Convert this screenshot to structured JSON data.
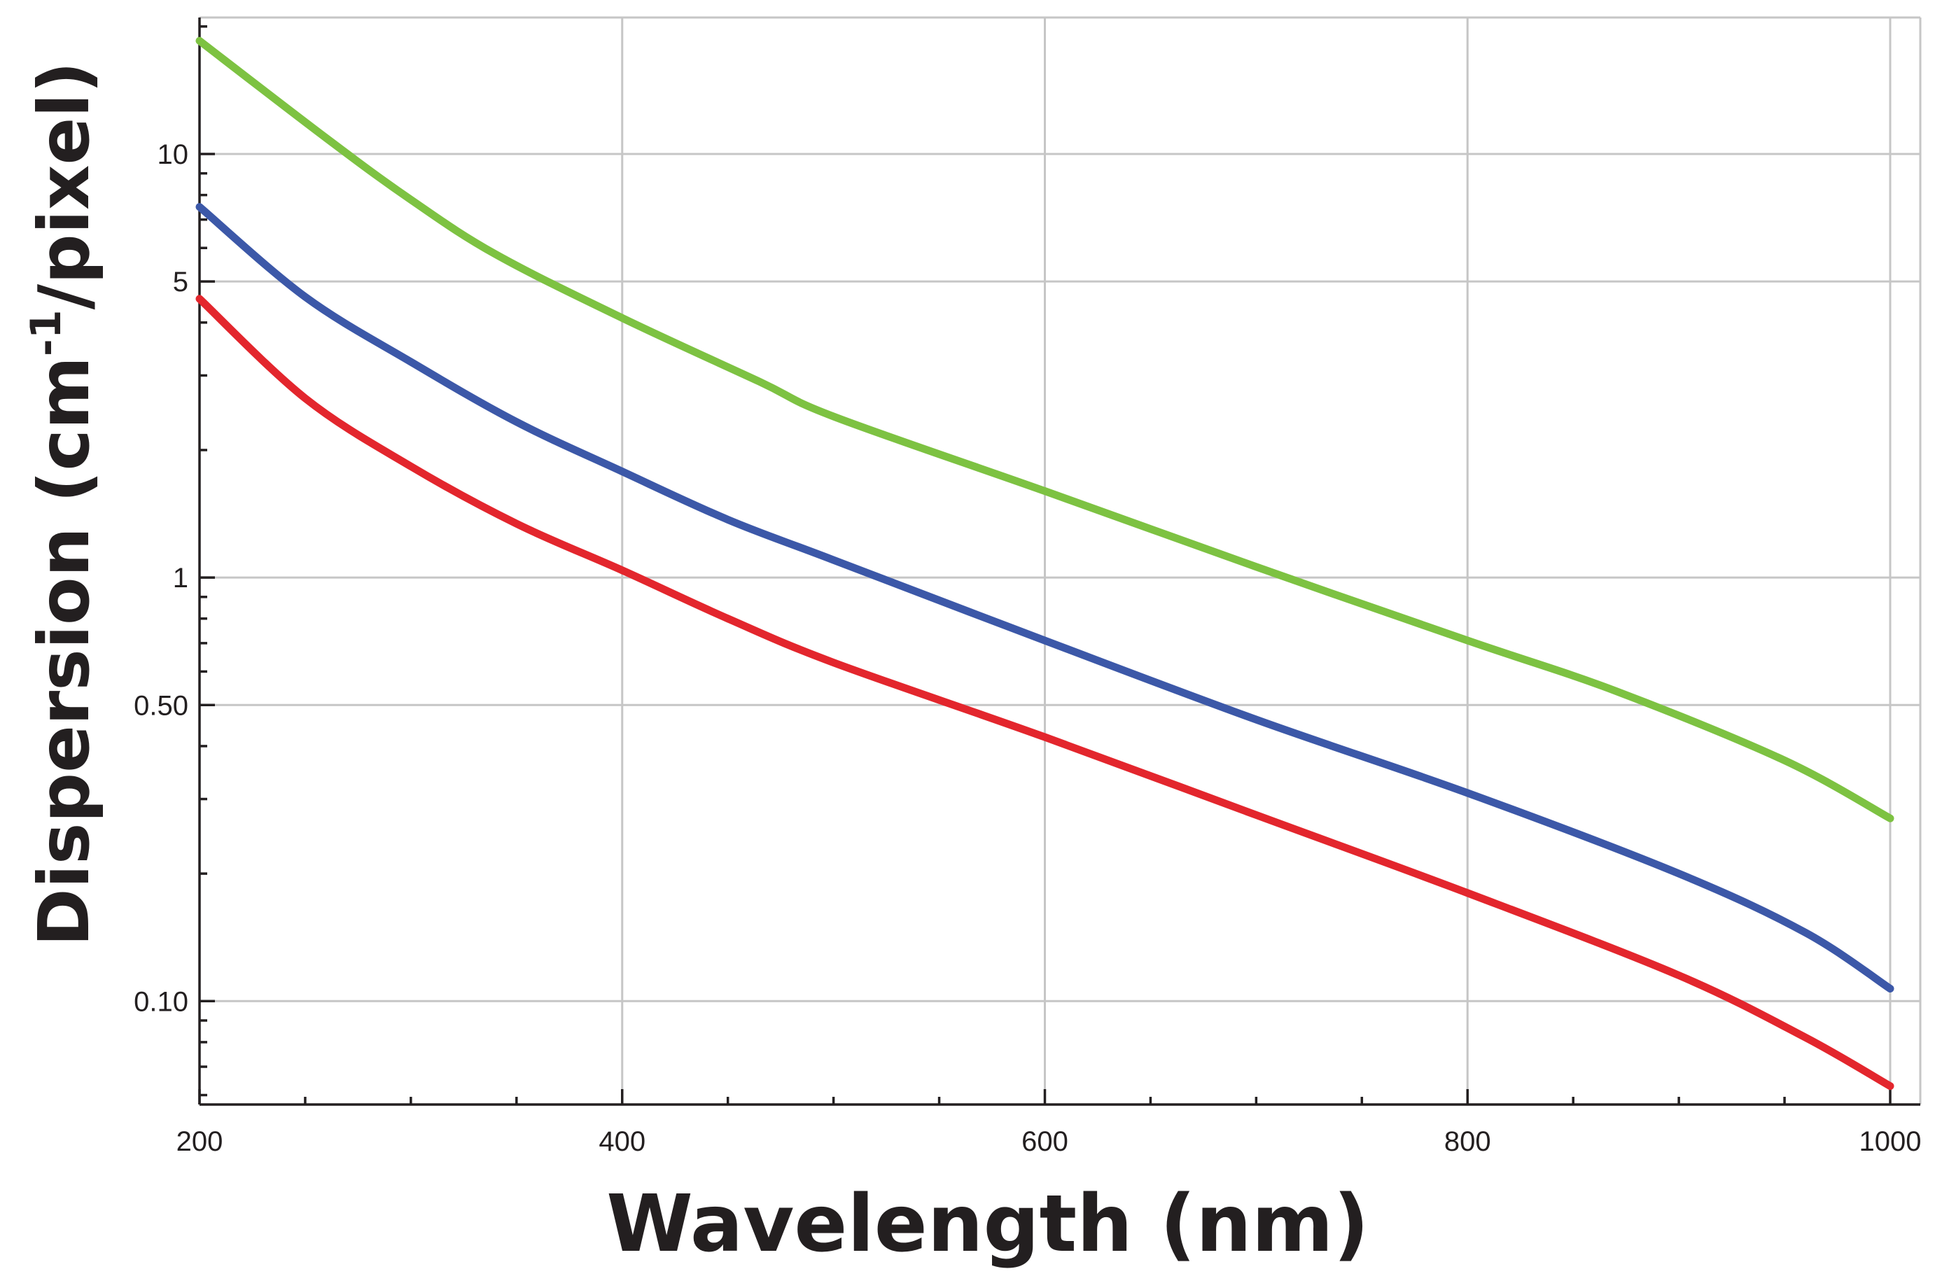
{
  "chart_data": {
    "type": "line",
    "title": "",
    "xlabel": "Wavelength (nm)",
    "ylabel": {
      "main": "Dispersion (cm",
      "superscript": "-1",
      "suffix": "/pixel)"
    },
    "x_scale": "linear",
    "y_scale": "log",
    "xlim": [
      200,
      1000
    ],
    "ylim": [
      0.057,
      21
    ],
    "x_ticks": [
      {
        "value": 200,
        "label": "200"
      },
      {
        "value": 400,
        "label": "400"
      },
      {
        "value": 600,
        "label": "600"
      },
      {
        "value": 800,
        "label": "800"
      },
      {
        "value": 1000,
        "label": "1000"
      }
    ],
    "x_minor_ticks": [
      250,
      300,
      350,
      450,
      500,
      550,
      650,
      700,
      750,
      850,
      900,
      950
    ],
    "y_ticks": [
      {
        "value": 10,
        "label": "10"
      },
      {
        "value": 5,
        "label": "5"
      },
      {
        "value": 1,
        "label": "1"
      },
      {
        "value": 0.5,
        "label": "0.50"
      },
      {
        "value": 0.1,
        "label": "0.10"
      }
    ],
    "y_minor_ticks": [
      0.06,
      0.07,
      0.08,
      0.09,
      0.2,
      0.3,
      0.4,
      0.6,
      0.7,
      0.8,
      0.9,
      2,
      3,
      4,
      6,
      7,
      8,
      9,
      20
    ],
    "grid": true,
    "series": [
      {
        "name": "green",
        "color": "#7dc242",
        "x": [
          200,
          260,
          300,
          340,
          400,
          465,
          500,
          600,
          700,
          800,
          870,
          950,
          1000
        ],
        "y": [
          18.5,
          10.9,
          7.8,
          5.8,
          4.1,
          2.9,
          2.4,
          1.6,
          1.06,
          0.71,
          0.54,
          0.37,
          0.27
        ]
      },
      {
        "name": "blue",
        "color": "#3c58a8",
        "x": [
          200,
          250,
          300,
          350,
          400,
          450,
          500,
          600,
          700,
          800,
          900,
          960,
          1000
        ],
        "y": [
          7.5,
          4.6,
          3.23,
          2.33,
          1.78,
          1.37,
          1.1,
          0.71,
          0.462,
          0.31,
          0.2,
          0.145,
          0.107
        ]
      },
      {
        "name": "red",
        "color": "#e3262d",
        "x": [
          200,
          250,
          300,
          350,
          400,
          450,
          500,
          600,
          700,
          800,
          900,
          960,
          1000
        ],
        "y": [
          4.55,
          2.65,
          1.83,
          1.34,
          1.04,
          0.8,
          0.63,
          0.42,
          0.275,
          0.18,
          0.115,
          0.082,
          0.063
        ]
      }
    ]
  }
}
